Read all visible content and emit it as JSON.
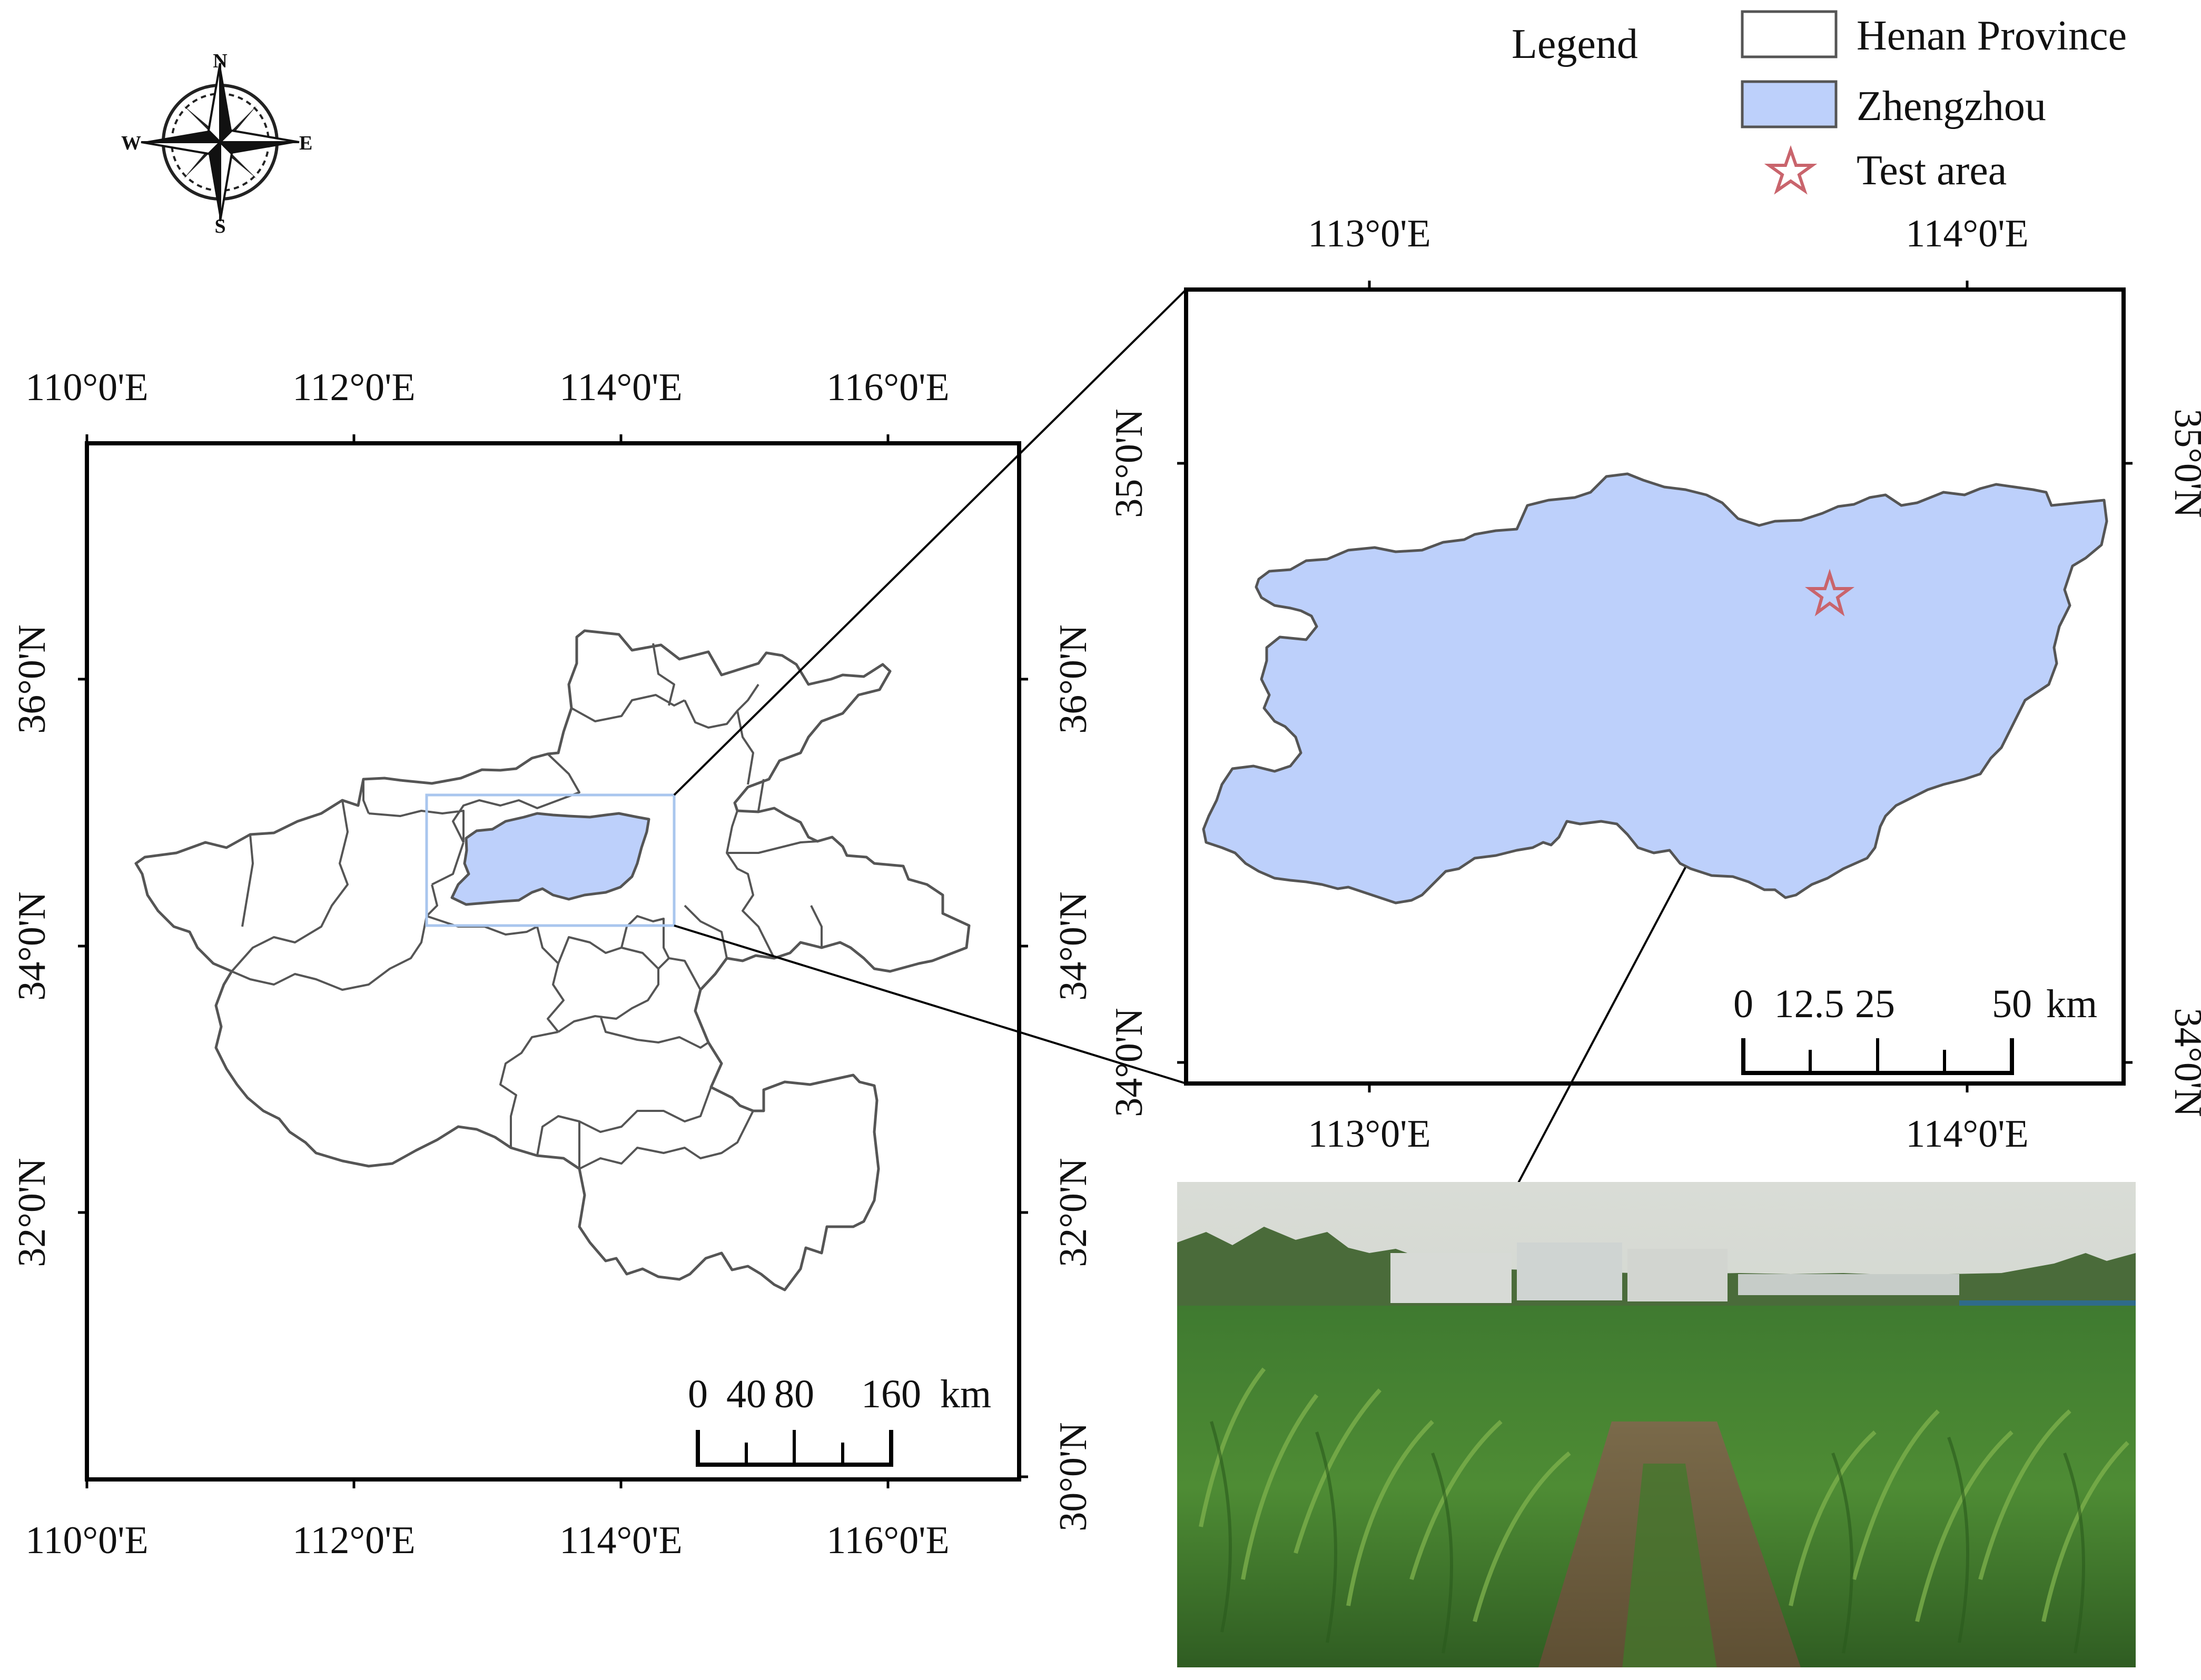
{
  "legend": {
    "title": "Legend",
    "items": [
      {
        "label": "Henan Province",
        "symbol": "outline-box",
        "fill": "#ffffff",
        "stroke": "#555555"
      },
      {
        "label": "Zhengzhou",
        "symbol": "filled-box",
        "fill": "#bdd0fb",
        "stroke": "#555555"
      },
      {
        "label": "Test area",
        "symbol": "star-icon",
        "stroke": "#c9646c"
      }
    ]
  },
  "compass": {
    "north": "N",
    "south": "S",
    "east": "E",
    "west": "W"
  },
  "main_map": {
    "lon_labels_top": [
      "110°0'E",
      "112°0'E",
      "114°0'E",
      "116°0'E"
    ],
    "lon_labels_bottom": [
      "110°0'E",
      "112°0'E",
      "114°0'E",
      "116°0'E"
    ],
    "lat_labels_left": [
      "36°0'N",
      "34°0'N",
      "32°0'N"
    ],
    "lat_labels_right": [
      "36°0'N",
      "34°0'N",
      "32°0'N",
      "30°0'N"
    ],
    "scale_bar": {
      "ticks": [
        "0",
        "40",
        "80",
        "160"
      ],
      "unit": "km"
    }
  },
  "inset_map": {
    "lon_labels_top": [
      "113°0'E",
      "114°0'E"
    ],
    "lon_labels_bottom": [
      "113°0'E",
      "114°0'E"
    ],
    "lat_labels_left": [
      "35°0'N",
      "34°0'N"
    ],
    "lat_labels_right": [
      "35°0'N",
      "34°0'N"
    ],
    "scale_bar": {
      "ticks": [
        "0",
        "12.5",
        "25",
        "50"
      ],
      "unit": "km"
    }
  },
  "photo": {
    "subject": "corn field test area photograph"
  },
  "colors": {
    "zhengzhou_fill": "#bdd0fb",
    "test_area_star": "#c9646c",
    "extent_box": "#a9c6ee"
  }
}
